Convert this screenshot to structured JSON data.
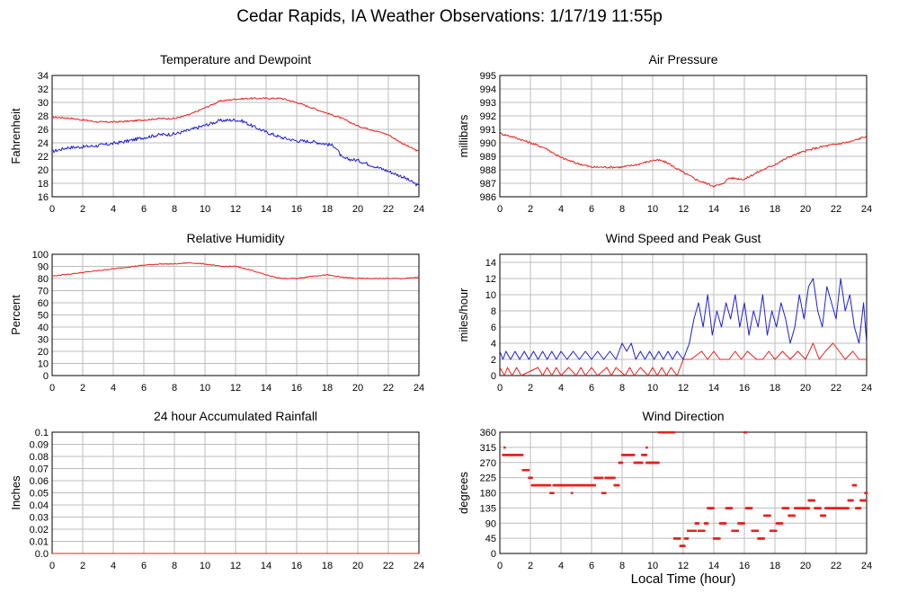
{
  "page": {
    "title": "Cedar Rapids, IA Weather Observations: 1/17/19 11:55p",
    "x_axis_label": "Local Time (hour)"
  },
  "colors": {
    "red": "#e8201c",
    "blue": "#1f1fd6",
    "grid": "#bdbdbd",
    "axis": "#000000"
  },
  "chart_data": [
    {
      "type": "line",
      "title": "Temperature and Dewpoint",
      "ylabel": "Fahrenheit",
      "xlim": [
        0,
        24
      ],
      "ylim": [
        16,
        34
      ],
      "x_ticks": [
        0,
        2,
        4,
        6,
        8,
        10,
        12,
        14,
        16,
        18,
        20,
        22,
        24
      ],
      "y_ticks": [
        16,
        18,
        20,
        22,
        24,
        26,
        28,
        30,
        32,
        34
      ],
      "grid": true,
      "series": [
        {
          "color": "red",
          "noise": 0.12,
          "x": [
            0,
            1,
            2,
            3,
            4,
            5,
            6,
            7,
            8,
            9,
            10,
            11,
            12,
            13,
            14,
            15,
            16,
            17,
            18,
            19,
            20,
            21,
            22,
            23,
            24
          ],
          "y": [
            27.8,
            27.7,
            27.4,
            27.1,
            27.1,
            27.2,
            27.4,
            27.6,
            27.6,
            28.2,
            29.2,
            30.2,
            30.5,
            30.6,
            30.6,
            30.6,
            30.0,
            29.2,
            28.4,
            27.6,
            26.5,
            25.9,
            25.2,
            23.8,
            22.7
          ]
        },
        {
          "color": "blue",
          "noise": 0.25,
          "x": [
            0,
            1,
            2,
            3,
            4,
            5,
            6,
            7,
            8,
            9,
            10,
            11,
            12,
            12.5,
            13,
            14,
            15,
            16,
            17,
            18,
            18.5,
            19,
            20,
            21,
            22,
            23,
            24
          ],
          "y": [
            22.7,
            23.3,
            23.4,
            23.6,
            23.9,
            24.3,
            24.8,
            25.2,
            25.3,
            25.9,
            26.6,
            27.3,
            27.4,
            27.2,
            26.6,
            25.6,
            24.8,
            24.3,
            24.2,
            23.8,
            23.5,
            21.7,
            21.4,
            20.6,
            19.8,
            18.9,
            17.6
          ]
        }
      ]
    },
    {
      "type": "line",
      "title": "Air Pressure",
      "ylabel": "millibars",
      "xlim": [
        0,
        24
      ],
      "ylim": [
        986,
        995
      ],
      "x_ticks": [
        0,
        2,
        4,
        6,
        8,
        10,
        12,
        14,
        16,
        18,
        20,
        22,
        24
      ],
      "y_ticks": [
        986,
        987,
        988,
        989,
        990,
        991,
        992,
        993,
        994,
        995
      ],
      "grid": true,
      "series": [
        {
          "color": "red",
          "noise": 0.08,
          "x": [
            0,
            1,
            2,
            3,
            4,
            5,
            6,
            7,
            8,
            9,
            10,
            10.5,
            11,
            12,
            13,
            14,
            14.5,
            15,
            16,
            17,
            18,
            19,
            20,
            21,
            22,
            23,
            24
          ],
          "y": [
            990.7,
            990.4,
            990.0,
            989.6,
            988.9,
            988.5,
            988.2,
            988.2,
            988.2,
            988.4,
            988.7,
            988.7,
            988.5,
            987.8,
            987.2,
            986.8,
            986.9,
            987.4,
            987.3,
            987.9,
            988.4,
            989.0,
            989.4,
            989.7,
            989.9,
            990.1,
            990.5
          ]
        }
      ]
    },
    {
      "type": "line",
      "title": "Relative Humidity",
      "ylabel": "Percent",
      "xlim": [
        0,
        24
      ],
      "ylim": [
        0,
        100
      ],
      "x_ticks": [
        0,
        2,
        4,
        6,
        8,
        10,
        12,
        14,
        16,
        18,
        20,
        22,
        24
      ],
      "y_ticks": [
        0,
        10,
        20,
        30,
        40,
        50,
        60,
        70,
        80,
        90,
        100
      ],
      "grid": true,
      "series": [
        {
          "color": "red",
          "noise": 0.4,
          "x": [
            0,
            2,
            4,
            6,
            7,
            8,
            9,
            10,
            11,
            12,
            13,
            14,
            15,
            16,
            17,
            18,
            19,
            20,
            21,
            22,
            23,
            24
          ],
          "y": [
            82,
            85,
            88,
            91,
            92,
            92,
            93,
            92,
            90,
            90,
            87,
            83,
            80,
            80,
            82,
            83,
            81,
            80,
            80,
            80,
            80,
            81
          ]
        }
      ]
    },
    {
      "type": "line",
      "title": "Wind Speed and Peak Gust",
      "ylabel": "miles/hour",
      "xlim": [
        0,
        24
      ],
      "ylim": [
        0,
        15
      ],
      "x_ticks": [
        0,
        2,
        4,
        6,
        8,
        10,
        12,
        14,
        16,
        18,
        20,
        22,
        24
      ],
      "y_ticks": [
        0,
        2,
        4,
        6,
        8,
        10,
        12,
        14
      ],
      "grid": true,
      "series": [
        {
          "color": "red",
          "x": [
            0,
            0.3,
            0.5,
            0.8,
            1.1,
            1.4,
            2.5,
            2.8,
            3.1,
            3.4,
            3.7,
            4.0,
            4.5,
            5.0,
            5.3,
            5.6,
            6.0,
            6.4,
            7.0,
            7.3,
            7.6,
            8.2,
            8.5,
            8.8,
            9.2,
            9.7,
            10.0,
            10.3,
            10.6,
            10.9,
            11.2,
            11.6,
            12.0,
            12.5,
            13.2,
            13.6,
            14.0,
            14.4,
            15.0,
            15.4,
            15.8,
            16.2,
            16.8,
            17.2,
            17.6,
            18.0,
            18.5,
            19.0,
            19.5,
            20.0,
            20.5,
            20.9,
            21.3,
            21.8,
            22.2,
            22.6,
            23.1,
            23.5,
            24
          ],
          "y": [
            1,
            0,
            1,
            0,
            1,
            0,
            1,
            0,
            1,
            0,
            1,
            0,
            1,
            0,
            1,
            0,
            1,
            0,
            1,
            0,
            1,
            0,
            1,
            0,
            1,
            0,
            1,
            0,
            1,
            0,
            1,
            0,
            2,
            2,
            3,
            2,
            3,
            2,
            2,
            3,
            2,
            3,
            2,
            2,
            3,
            2,
            3,
            2,
            3,
            2,
            4,
            2,
            3,
            4,
            3,
            2,
            3,
            2,
            2
          ]
        },
        {
          "color": "blue",
          "x": [
            0,
            0.2,
            0.4,
            0.7,
            1.0,
            1.3,
            1.6,
            1.9,
            2.2,
            2.5,
            2.8,
            3.1,
            3.4,
            3.7,
            4.0,
            4.4,
            4.8,
            5.2,
            5.6,
            6.0,
            6.4,
            6.8,
            7.2,
            7.6,
            8.0,
            8.3,
            8.6,
            8.9,
            9.2,
            9.5,
            9.8,
            10.1,
            10.4,
            10.7,
            11.0,
            11.3,
            11.6,
            12.0,
            12.4,
            12.7,
            13.0,
            13.3,
            13.6,
            13.9,
            14.2,
            14.5,
            14.8,
            15.1,
            15.4,
            15.7,
            16.0,
            16.3,
            16.6,
            16.9,
            17.2,
            17.5,
            17.8,
            18.1,
            18.4,
            18.7,
            19.0,
            19.3,
            19.6,
            19.9,
            20.2,
            20.5,
            20.8,
            21.1,
            21.4,
            21.7,
            22.0,
            22.3,
            22.6,
            22.9,
            23.2,
            23.5,
            23.8,
            24
          ],
          "y": [
            3,
            2,
            3,
            2,
            3,
            2,
            3,
            2,
            3,
            2,
            3,
            2,
            3,
            2,
            3,
            2,
            3,
            2,
            3,
            2,
            3,
            2,
            3,
            2,
            4,
            3,
            4,
            2,
            3,
            2,
            3,
            2,
            3,
            2,
            3,
            2,
            3,
            2,
            4,
            7,
            9,
            6,
            10,
            5,
            8,
            6,
            9,
            7,
            10,
            6,
            9,
            5,
            8,
            6,
            10,
            5,
            8,
            6,
            9,
            7,
            4,
            6,
            10,
            7,
            11,
            12,
            8,
            6,
            11,
            9,
            7,
            12,
            8,
            10,
            6,
            4,
            9,
            4
          ]
        }
      ]
    },
    {
      "type": "line",
      "title": "24 hour Accumulated Rainfall",
      "ylabel": "Inches",
      "xlim": [
        0,
        24
      ],
      "ylim": [
        0,
        0.1
      ],
      "x_ticks": [
        0,
        2,
        4,
        6,
        8,
        10,
        12,
        14,
        16,
        18,
        20,
        22,
        24
      ],
      "y_ticks": [
        0,
        0.01,
        0.02,
        0.03,
        0.04,
        0.05,
        0.06,
        0.07,
        0.08,
        0.09,
        0.1
      ],
      "y_tick_labels": [
        "0.0",
        "0.01",
        "0.02",
        "0.03",
        "0.04",
        "0.05",
        "0.06",
        "0.07",
        "0.08",
        "0.09",
        "0.1"
      ],
      "grid": true,
      "series": [
        {
          "color": "red",
          "x": [
            0,
            24
          ],
          "y": [
            0,
            0
          ]
        }
      ]
    },
    {
      "type": "scatter",
      "title": "Wind Direction",
      "ylabel": "degrees",
      "xlim": [
        0,
        24
      ],
      "ylim": [
        0,
        360
      ],
      "x_ticks": [
        0,
        2,
        4,
        6,
        8,
        10,
        12,
        14,
        16,
        18,
        20,
        22,
        24
      ],
      "y_ticks": [
        0,
        45,
        90,
        135,
        180,
        225,
        270,
        315,
        360
      ],
      "grid": true,
      "series": [
        {
          "color": "red",
          "runs": [
            [
              0.2,
              1.5,
              293
            ],
            [
              0.3,
              0.3,
              315
            ],
            [
              1.5,
              1.9,
              248
            ],
            [
              1.9,
              2.1,
              225
            ],
            [
              2.1,
              2.6,
              203
            ],
            [
              2.6,
              3.3,
              203
            ],
            [
              3.3,
              3.5,
              180
            ],
            [
              3.5,
              6.2,
              203
            ],
            [
              4.7,
              4.7,
              180
            ],
            [
              6.2,
              6.7,
              225
            ],
            [
              6.7,
              6.9,
              180
            ],
            [
              6.9,
              7.5,
              225
            ],
            [
              7.5,
              7.8,
              203
            ],
            [
              7.8,
              8.0,
              270
            ],
            [
              8.0,
              8.8,
              293
            ],
            [
              8.8,
              9.3,
              270
            ],
            [
              9.3,
              9.6,
              293
            ],
            [
              9.6,
              9.6,
              315
            ],
            [
              9.6,
              10.4,
              270
            ],
            [
              10.4,
              11.4,
              360
            ],
            [
              11.4,
              11.8,
              45
            ],
            [
              11.8,
              12.1,
              23
            ],
            [
              12.1,
              12.3,
              45
            ],
            [
              12.3,
              12.8,
              68
            ],
            [
              12.8,
              13.0,
              90
            ],
            [
              13.0,
              13.4,
              68
            ],
            [
              13.4,
              13.6,
              90
            ],
            [
              13.6,
              14.0,
              135
            ],
            [
              14.0,
              14.4,
              45
            ],
            [
              14.4,
              14.8,
              90
            ],
            [
              14.8,
              15.2,
              135
            ],
            [
              15.2,
              15.6,
              68
            ],
            [
              15.6,
              16.0,
              90
            ],
            [
              16.0,
              16.1,
              360
            ],
            [
              16.1,
              16.5,
              135
            ],
            [
              16.5,
              16.9,
              68
            ],
            [
              16.9,
              17.3,
              45
            ],
            [
              17.3,
              17.7,
              113
            ],
            [
              17.7,
              18.1,
              68
            ],
            [
              18.1,
              18.5,
              90
            ],
            [
              18.5,
              18.9,
              135
            ],
            [
              18.9,
              19.3,
              113
            ],
            [
              19.3,
              20.2,
              135
            ],
            [
              20.2,
              20.6,
              158
            ],
            [
              20.6,
              21.0,
              135
            ],
            [
              21.0,
              21.3,
              113
            ],
            [
              21.3,
              22.8,
              135
            ],
            [
              22.8,
              23.1,
              158
            ],
            [
              23.1,
              23.3,
              203
            ],
            [
              23.3,
              23.6,
              135
            ],
            [
              23.6,
              24.0,
              158
            ],
            [
              23.9,
              24.0,
              180
            ]
          ]
        }
      ]
    }
  ]
}
